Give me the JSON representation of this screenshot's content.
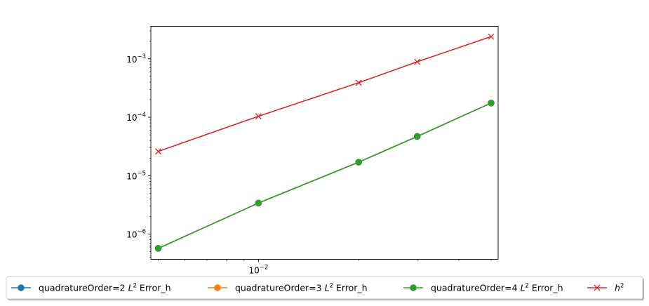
{
  "chart_data": {
    "type": "line",
    "xscale": "log",
    "yscale": "log",
    "xlim": [
      0.00475,
      0.0525
    ],
    "ylim": [
      3.7e-07,
      0.0036
    ],
    "x": [
      0.005,
      0.01,
      0.02,
      0.03,
      0.05
    ],
    "grid": false,
    "legend_position": "bottom",
    "x_ticks": [
      {
        "value": 0.01,
        "base": "10",
        "exp": "−2"
      }
    ],
    "y_ticks": [
      {
        "value": 1e-06,
        "base": "10",
        "exp": "−6"
      },
      {
        "value": 1e-05,
        "base": "10",
        "exp": "−5"
      },
      {
        "value": 0.0001,
        "base": "10",
        "exp": "−4"
      },
      {
        "value": 0.001,
        "base": "10",
        "exp": "−3"
      }
    ],
    "series": [
      {
        "name_prefix": "quadratureOrder=2 ",
        "name_math": "L",
        "name_sup": "2",
        "name_suffix": " Error_h",
        "color": "#1f77b4",
        "marker": "circle",
        "values": [
          5.7e-07,
          3.4e-06,
          1.7e-05,
          4.7e-05,
          0.000175
        ]
      },
      {
        "name_prefix": "quadratureOrder=3 ",
        "name_math": "L",
        "name_sup": "2",
        "name_suffix": " Error_h",
        "color": "#ff7f0e",
        "marker": "circle",
        "values": [
          5.7e-07,
          3.4e-06,
          1.7e-05,
          4.7e-05,
          0.000175
        ]
      },
      {
        "name_prefix": "quadratureOrder=4 ",
        "name_math": "L",
        "name_sup": "2",
        "name_suffix": " Error_h",
        "color": "#2ca02c",
        "marker": "circle",
        "values": [
          5.7e-07,
          3.4e-06,
          1.7e-05,
          4.7e-05,
          0.000175
        ]
      },
      {
        "name_prefix": "",
        "name_math": "h",
        "name_sup": "2",
        "name_suffix": "",
        "color": "#d62728",
        "marker": "x",
        "values": [
          2.6e-05,
          0.000104,
          0.00039,
          0.00089,
          0.0024
        ]
      }
    ]
  }
}
